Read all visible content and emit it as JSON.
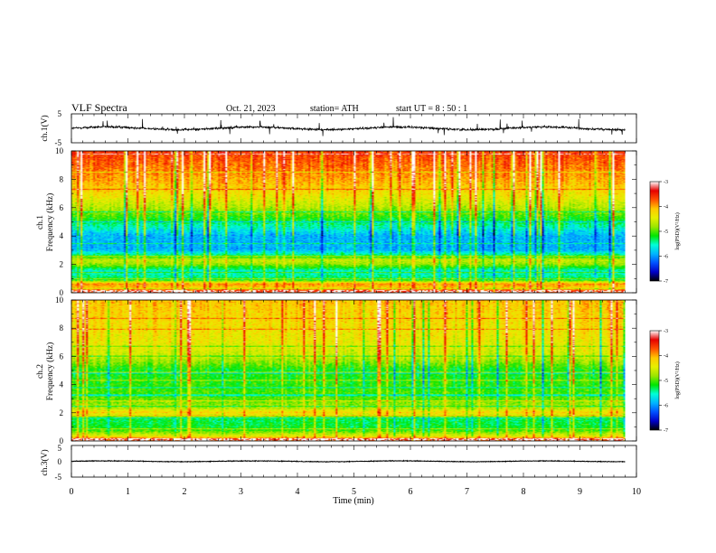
{
  "header": {
    "title": "VLF  Spectra",
    "date": "Oct. 21, 2023",
    "station": "station= ATH",
    "start": "start  UT  =   8  : 50 : 1"
  },
  "chart_data": [
    {
      "type": "line",
      "panel": "ch1-waveform",
      "ylabel": "ch.1(V)",
      "xlim": [
        0,
        10
      ],
      "ylim": [
        -5,
        5
      ],
      "yticks": [
        "5",
        "-5"
      ],
      "data_extent_min": 9.8,
      "baseline_v": 0,
      "noise_amplitude_v": 1.3,
      "spike_amplitude_v": 3
    },
    {
      "type": "heatmap",
      "panel": "ch1-spectrogram",
      "ylabel_line1": "ch.1",
      "ylabel_line2": "Frequency  (kHz)",
      "xlim": [
        0,
        10
      ],
      "ylim": [
        0,
        10
      ],
      "yticks": [
        "10",
        "8",
        "6",
        "4",
        "2",
        "0"
      ],
      "data_extent_min": 9.8,
      "colorbar": {
        "label": "log(PSD)(V²/Hz)",
        "range": [
          -7,
          -3
        ],
        "ticks": [
          "-3",
          "-4",
          "-5",
          "-6",
          "-7"
        ],
        "colors": [
          "#000000",
          "#0000c8",
          "#0050ff",
          "#00b4ff",
          "#00ffd8",
          "#00e600",
          "#9be600",
          "#e6f000",
          "#ffc800",
          "#ff5000",
          "#e60000",
          "#ffffff"
        ]
      },
      "profile_khz": [
        [
          0,
          -3.2
        ],
        [
          0.3,
          -4.2
        ],
        [
          0.6,
          -3.9
        ],
        [
          0.9,
          -5.3
        ],
        [
          1.5,
          -5.6
        ],
        [
          2.0,
          -4.8
        ],
        [
          2.3,
          -4.6
        ],
        [
          2.6,
          -5.3
        ],
        [
          3.0,
          -5.9
        ],
        [
          4.0,
          -5.9
        ],
        [
          5.0,
          -5.3
        ],
        [
          6.0,
          -4.7
        ],
        [
          7.0,
          -4.3
        ],
        [
          8.0,
          -4.0
        ],
        [
          9.0,
          -3.8
        ],
        [
          10.0,
          -3.6
        ]
      ]
    },
    {
      "type": "heatmap",
      "panel": "ch2-spectrogram",
      "ylabel_line1": "ch.2",
      "ylabel_line2": "Frequency  (kHz)",
      "xlim": [
        0,
        10
      ],
      "ylim": [
        0,
        10
      ],
      "yticks": [
        "10",
        "8",
        "6",
        "4",
        "2",
        "0"
      ],
      "data_extent_min": 9.8,
      "colorbar": {
        "label": "log(PSD)(V²/Hz)",
        "range": [
          -7,
          -3
        ],
        "ticks": [
          "-3",
          "-4",
          "-5",
          "-6",
          "-7"
        ],
        "colors": [
          "#000000",
          "#0000c8",
          "#0050ff",
          "#00b4ff",
          "#00ffd8",
          "#00e600",
          "#9be600",
          "#e6f000",
          "#ffc800",
          "#ff5000",
          "#e60000",
          "#ffffff"
        ]
      },
      "profile_khz": [
        [
          0,
          -3.2
        ],
        [
          0.3,
          -4.4
        ],
        [
          0.8,
          -5.2
        ],
        [
          1.5,
          -5.3
        ],
        [
          2.0,
          -4.2
        ],
        [
          2.3,
          -4.7
        ],
        [
          3.0,
          -5.0
        ],
        [
          4.0,
          -5.1
        ],
        [
          5.0,
          -5.2
        ],
        [
          6.0,
          -4.6
        ],
        [
          7.0,
          -4.4
        ],
        [
          8.0,
          -4.3
        ],
        [
          9.0,
          -4.2
        ],
        [
          10.0,
          -4.1
        ]
      ]
    },
    {
      "type": "line",
      "panel": "ch3-waveform",
      "ylabel": "ch.3(V)",
      "xlabel": "Time  (min)",
      "xlim": [
        0,
        10
      ],
      "ylim": [
        -5,
        5
      ],
      "yticks": [
        "5",
        "0",
        "-5"
      ],
      "xticks": [
        "0",
        "1",
        "2",
        "3",
        "4",
        "5",
        "6",
        "7",
        "8",
        "9",
        "10"
      ],
      "data_extent_min": 9.8,
      "baseline_v": 0,
      "noise_amplitude_v": 0.35,
      "spike_amplitude_v": 0
    }
  ]
}
